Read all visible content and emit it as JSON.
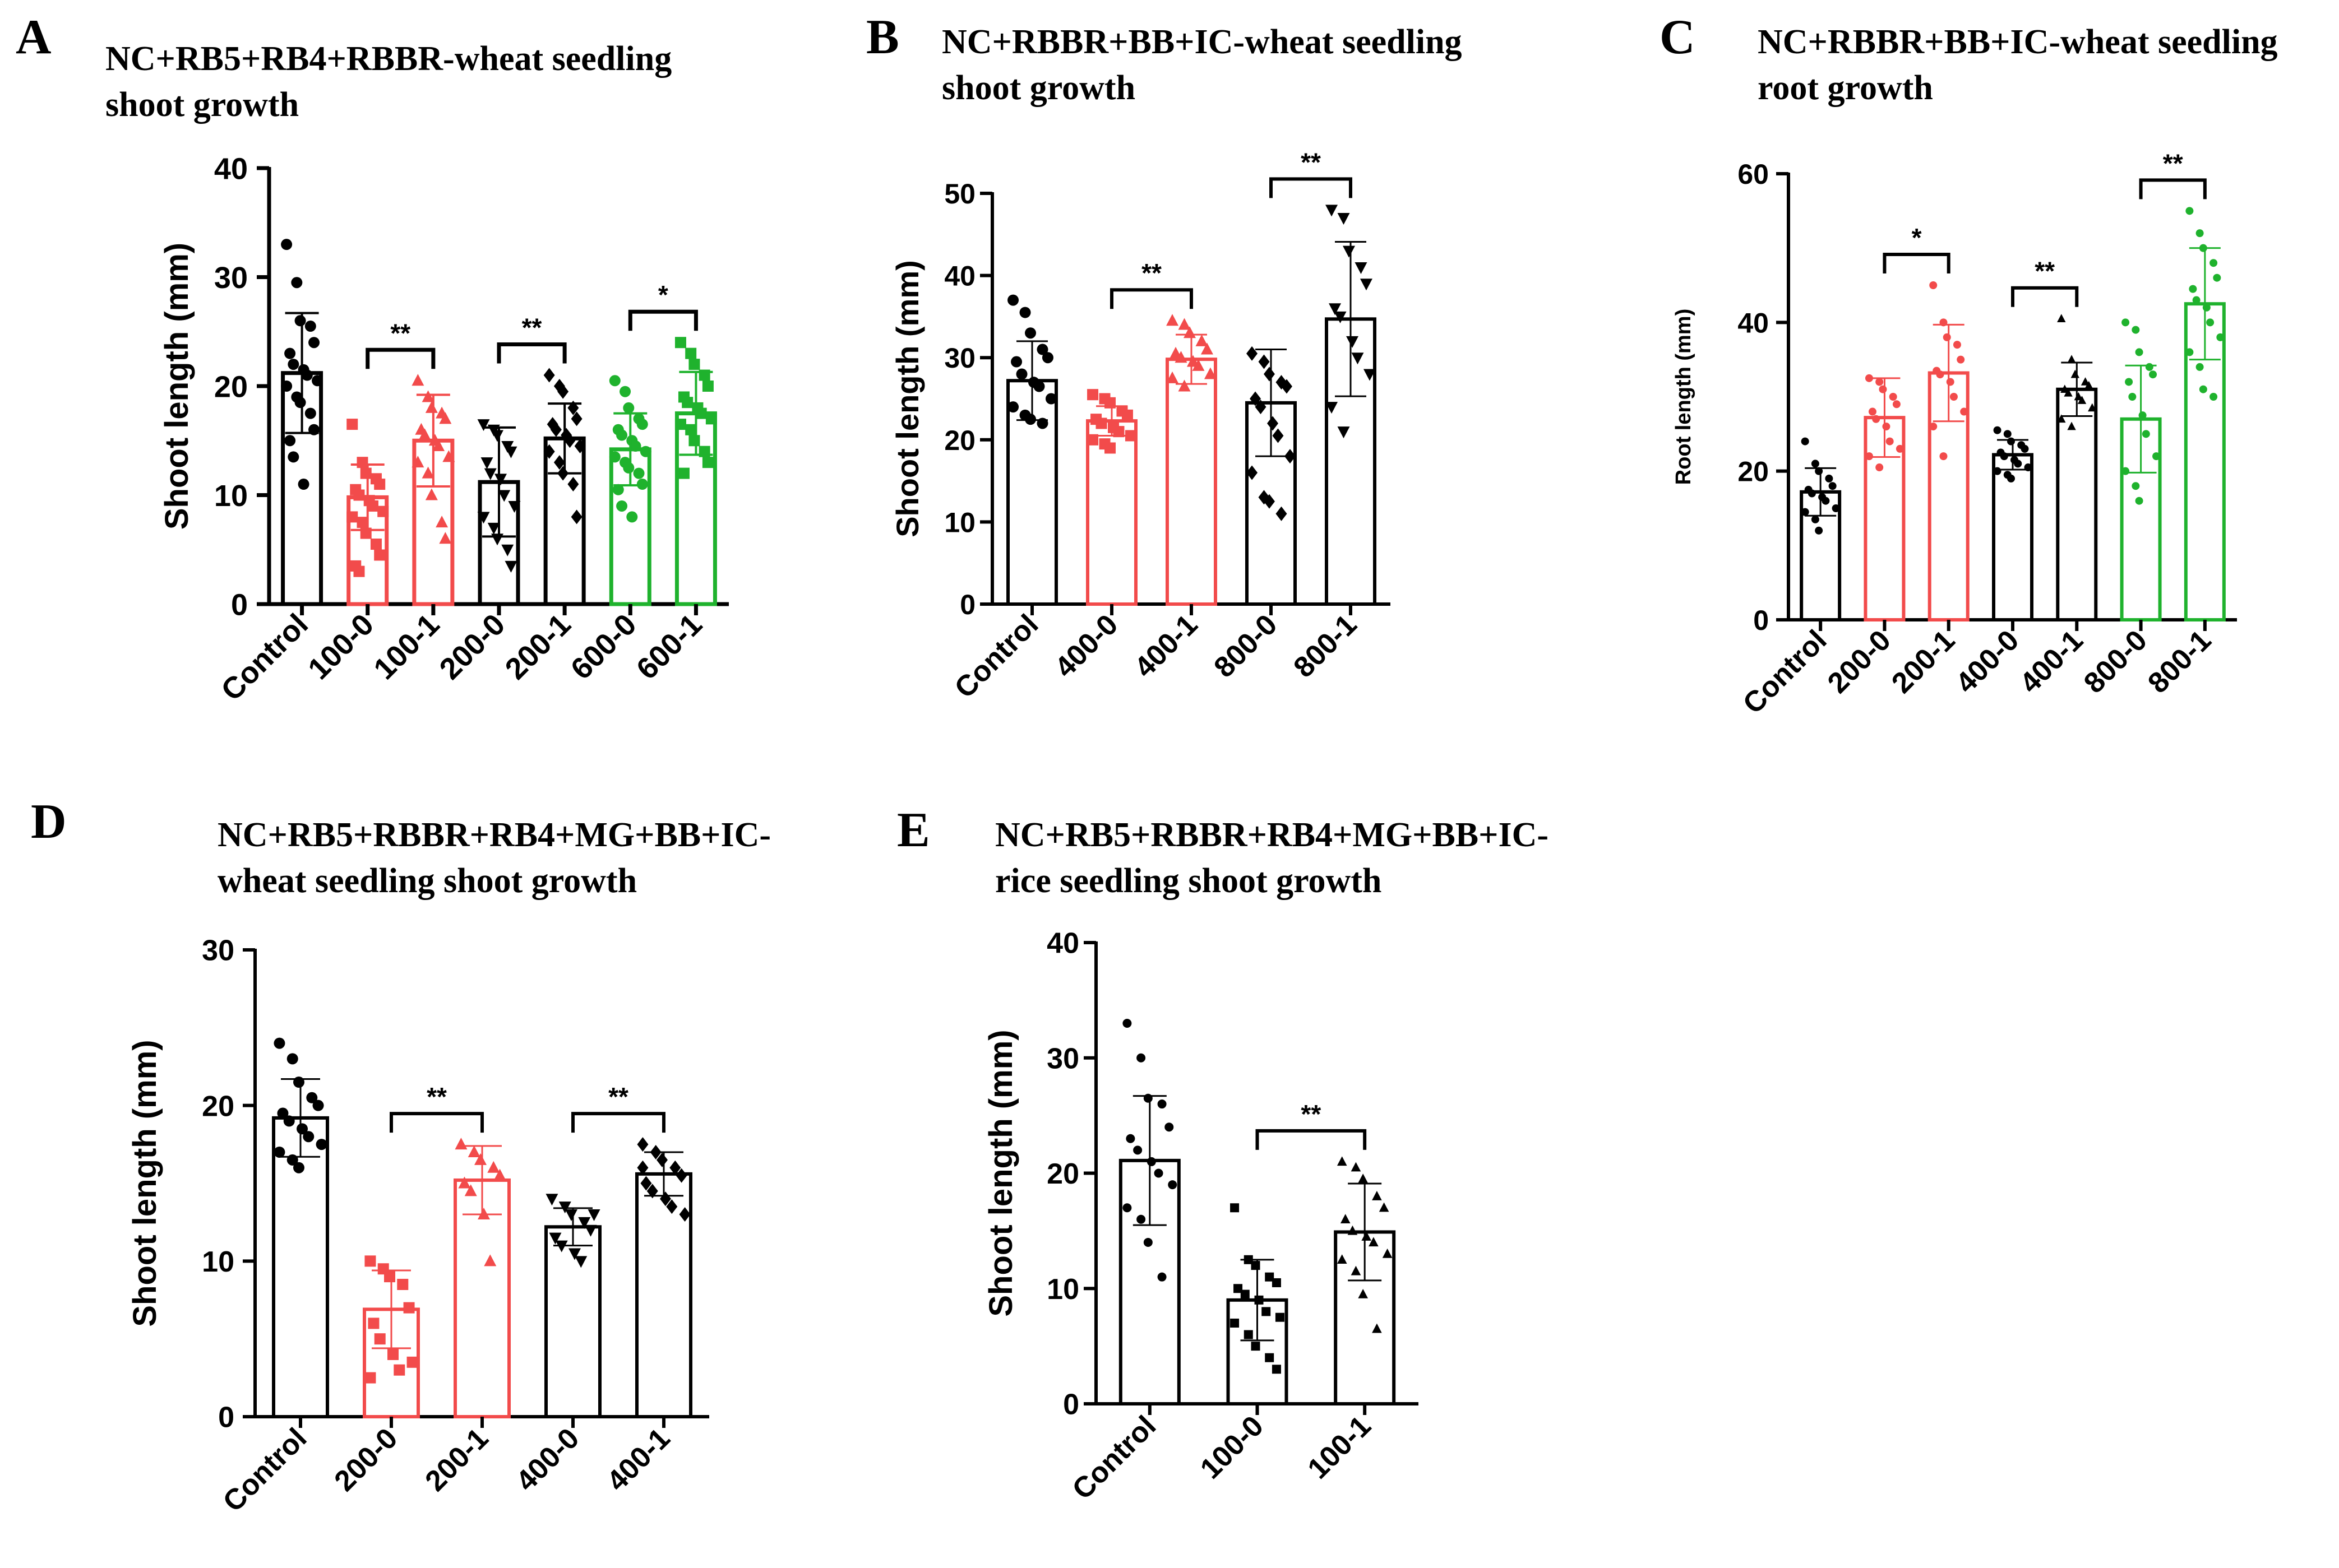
{
  "colors": {
    "black": "#000000",
    "red": "#f24b4b",
    "green": "#1fb22d"
  },
  "chart_data": [
    {
      "panel": "A",
      "type": "bar",
      "title_lines": [
        "NC+RB5+RB4+RBBR-wheat seedling",
        "shoot growth"
      ],
      "ylabel": "Shoot length (mm)",
      "ylim": [
        0,
        40
      ],
      "yticks": [
        0,
        10,
        20,
        30,
        40
      ],
      "categories": [
        "Control",
        "100-0",
        "100-1",
        "200-0",
        "200-1",
        "600-0",
        "600-1"
      ],
      "values": [
        21.2,
        9.8,
        15.0,
        11.2,
        15.2,
        14.2,
        17.5
      ],
      "errors": [
        5.5,
        3.0,
        4.2,
        5.0,
        3.2,
        3.3,
        3.8
      ],
      "bar_colors": [
        "black",
        "red",
        "red",
        "black",
        "black",
        "green",
        "green"
      ],
      "markers": [
        "circle",
        "square",
        "triangle",
        "triangle-down",
        "diamond",
        "circle",
        "square"
      ],
      "points": [
        [
          33,
          29.5,
          26,
          25.5,
          24,
          23,
          22,
          21.5,
          21,
          20.5,
          20,
          19,
          18.5,
          17.5,
          16,
          15,
          13.5,
          11
        ],
        [
          16.5,
          13,
          12,
          11.5,
          11,
          10.5,
          10,
          9.5,
          9,
          8.5,
          8,
          7.5,
          6.5,
          5.5,
          4.5,
          3.5,
          3
        ],
        [
          20.5,
          19,
          18,
          17.5,
          17,
          16,
          15.5,
          15,
          14.5,
          13.5,
          13,
          12,
          10,
          7.5,
          6
        ],
        [
          16.5,
          16,
          15.5,
          14.5,
          14,
          13,
          12,
          11.5,
          10,
          9,
          8,
          7,
          6,
          5,
          3.5
        ],
        [
          21,
          20,
          19.5,
          18,
          17,
          16.5,
          16,
          15.5,
          15,
          14.5,
          14,
          13,
          12,
          11,
          8
        ],
        [
          20.5,
          19.5,
          18,
          17,
          16.5,
          16,
          15.5,
          15,
          14.5,
          14,
          13.5,
          13,
          12.5,
          12,
          11,
          10.5,
          9,
          8
        ],
        [
          24,
          23,
          22,
          21,
          20,
          19,
          18.5,
          18,
          17.5,
          17,
          16.5,
          16,
          15,
          14,
          13,
          12
        ]
      ],
      "significance": [
        {
          "from": 1,
          "to": 2,
          "label": "**"
        },
        {
          "from": 3,
          "to": 4,
          "label": "**"
        },
        {
          "from": 5,
          "to": 6,
          "label": "*"
        }
      ]
    },
    {
      "panel": "B",
      "type": "bar",
      "title_lines": [
        "NC+RBBR+BB+IC-wheat seedling",
        "shoot growth"
      ],
      "ylabel": "Shoot length (mm)",
      "ylim": [
        0,
        50
      ],
      "yticks": [
        0,
        10,
        20,
        30,
        40,
        50
      ],
      "categories": [
        "Control",
        "400-0",
        "400-1",
        "800-0",
        "800-1"
      ],
      "values": [
        27.2,
        22.3,
        29.8,
        24.5,
        34.7
      ],
      "errors": [
        4.8,
        1.8,
        3.0,
        6.5,
        9.4
      ],
      "bar_colors": [
        "black",
        "red",
        "red",
        "black",
        "black"
      ],
      "markers": [
        "circle",
        "square",
        "triangle",
        "diamond",
        "triangle-down"
      ],
      "points": [
        [
          37,
          35.5,
          33,
          31,
          30,
          29.5,
          28,
          27,
          26.5,
          25,
          24,
          23,
          22.5,
          22
        ],
        [
          25.5,
          25,
          24.5,
          23.5,
          23,
          22.5,
          22,
          21.5,
          21,
          20.5,
          20,
          19.5,
          19
        ],
        [
          34.5,
          34,
          33,
          32,
          31,
          30.5,
          30,
          29.5,
          29,
          28,
          27.5,
          26.5
        ],
        [
          30.5,
          29.5,
          28,
          27,
          26.5,
          25,
          24,
          22,
          20.5,
          18,
          16,
          13,
          12.5,
          11
        ],
        [
          48,
          47,
          43,
          41,
          39,
          36,
          35,
          32,
          30,
          28,
          24,
          21
        ]
      ],
      "significance": [
        {
          "from": 1,
          "to": 2,
          "label": "**"
        },
        {
          "from": 3,
          "to": 4,
          "label": "**"
        }
      ]
    },
    {
      "panel": "C",
      "type": "bar",
      "title_lines": [
        "NC+RBBR+BB+IC-wheat seedling",
        "root growth"
      ],
      "ylabel": "Root length (mm)",
      "ylim": [
        0,
        60
      ],
      "yticks": [
        0,
        20,
        40,
        60
      ],
      "categories": [
        "Control",
        "200-0",
        "200-1",
        "400-0",
        "400-1",
        "800-0",
        "800-1"
      ],
      "values": [
        17.2,
        27.2,
        33.2,
        22.2,
        31.0,
        27.0,
        42.5
      ],
      "errors": [
        3.2,
        5.3,
        6.5,
        2.0,
        3.6,
        7.2,
        7.5
      ],
      "bar_colors": [
        "black",
        "red",
        "red",
        "black",
        "black",
        "green",
        "green"
      ],
      "markers": [
        "circle",
        "circle",
        "circle",
        "circle",
        "triangle",
        "circle",
        "circle"
      ],
      "points": [
        [
          24,
          21,
          20,
          19,
          18,
          17.5,
          17,
          16.5,
          16,
          15,
          14.5,
          13.5,
          12
        ],
        [
          32.5,
          32,
          31,
          30,
          29,
          28,
          27,
          26,
          24,
          23,
          22,
          20.5
        ],
        [
          45,
          40,
          38,
          37,
          35,
          33.5,
          33,
          32,
          30,
          28,
          26,
          22
        ],
        [
          25.5,
          25,
          24,
          23.5,
          23,
          22.5,
          22,
          21.5,
          21,
          20.5,
          20,
          19.5,
          19
        ],
        [
          40.5,
          35,
          33,
          32,
          31.5,
          31,
          30.5,
          30,
          29.5,
          28.5,
          27,
          26
        ],
        [
          40,
          39,
          36,
          34,
          33,
          32,
          30,
          27.5,
          25,
          22,
          20,
          18,
          16
        ],
        [
          55,
          52,
          50,
          48,
          46,
          44.5,
          43,
          42,
          40,
          38,
          36,
          34,
          31,
          30
        ]
      ],
      "significance": [
        {
          "from": 1,
          "to": 2,
          "label": "*"
        },
        {
          "from": 3,
          "to": 4,
          "label": "**"
        },
        {
          "from": 5,
          "to": 6,
          "label": "**"
        }
      ]
    },
    {
      "panel": "D",
      "type": "bar",
      "title_lines": [
        "NC+RB5+RBBR+RB4+MG+BB+IC-",
        "wheat seedling shoot growth"
      ],
      "ylabel": "Shoot length (mm)",
      "ylim": [
        0,
        30
      ],
      "yticks": [
        0,
        10,
        20,
        30
      ],
      "categories": [
        "Control",
        "200-0",
        "200-1",
        "400-0",
        "400-1"
      ],
      "values": [
        19.2,
        6.9,
        15.2,
        12.2,
        15.6
      ],
      "errors": [
        2.5,
        2.5,
        2.2,
        1.2,
        1.4
      ],
      "bar_colors": [
        "black",
        "red",
        "red",
        "black",
        "black"
      ],
      "markers": [
        "circle",
        "square",
        "triangle",
        "triangle-down",
        "diamond"
      ],
      "points": [
        [
          24,
          23,
          21.5,
          20.5,
          20,
          19.5,
          19,
          18.5,
          18,
          17.5,
          17,
          16.5,
          16
        ],
        [
          10,
          9.5,
          9,
          8.5,
          7,
          6,
          5,
          4,
          3,
          3.5,
          2.5
        ],
        [
          17.5,
          17,
          16.5,
          16,
          15.5,
          15,
          14.5,
          13,
          10
        ],
        [
          14,
          13.5,
          13,
          12.5,
          12,
          11.5,
          11,
          10.5,
          10,
          13
        ],
        [
          17.5,
          17,
          16.5,
          16,
          15.5,
          15,
          14.5,
          14,
          13.5,
          13,
          16
        ]
      ],
      "significance": [
        {
          "from": 1,
          "to": 2,
          "label": "**"
        },
        {
          "from": 3,
          "to": 4,
          "label": "**"
        }
      ]
    },
    {
      "panel": "E",
      "type": "bar",
      "title_lines": [
        "NC+RB5+RBBR+RB4+MG+BB+IC-",
        "rice seedling shoot growth"
      ],
      "ylabel": "Shoot length (mm)",
      "ylim": [
        0,
        40
      ],
      "yticks": [
        0,
        10,
        20,
        30,
        40
      ],
      "categories": [
        "Control",
        "100-0",
        "100-1"
      ],
      "values": [
        21.1,
        9.0,
        14.9
      ],
      "errors": [
        5.6,
        3.5,
        4.2
      ],
      "bar_colors": [
        "black",
        "black",
        "black"
      ],
      "markers": [
        "circle",
        "square",
        "triangle"
      ],
      "points": [
        [
          33,
          30,
          26.5,
          26,
          24,
          23,
          22,
          21,
          20,
          19,
          17,
          16,
          14,
          11
        ],
        [
          17,
          12.5,
          12,
          11,
          10.5,
          10,
          9.5,
          9,
          8,
          7.5,
          7,
          6,
          5,
          4,
          3
        ],
        [
          21,
          20.5,
          19.5,
          18,
          17,
          16,
          15,
          14.5,
          14,
          13,
          12.5,
          11.5,
          9.5,
          6.5
        ]
      ],
      "significance": [
        {
          "from": 1,
          "to": 2,
          "label": "**"
        }
      ]
    }
  ]
}
